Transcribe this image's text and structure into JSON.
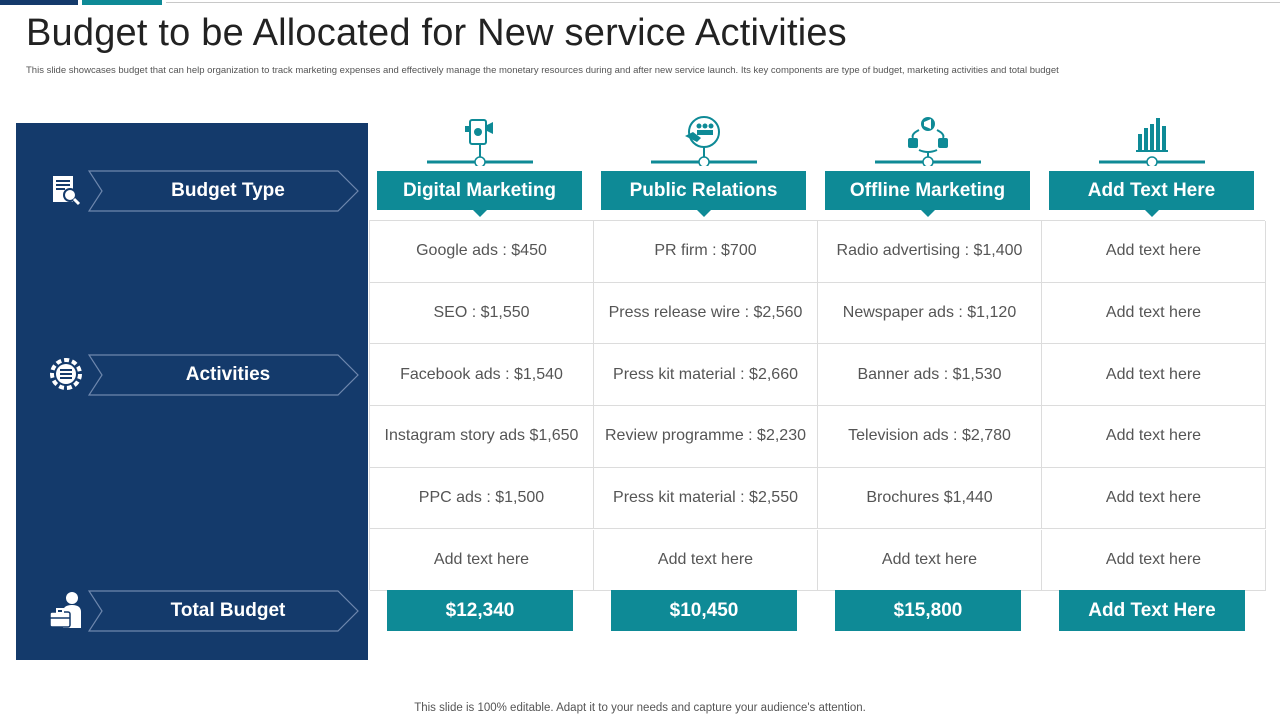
{
  "title": "Budget to be Allocated for New service Activities",
  "subtitle": "This slide showcases budget that can help organization to track marketing expenses and effectively manage the monetary resources during and after new service launch. Its key components are type of budget, marketing  activities and total budget",
  "left_panel": {
    "budget_type_label": "Budget Type",
    "activities_label": "Activities",
    "total_budget_label": "Total Budget"
  },
  "columns": [
    {
      "header": "Digital Marketing",
      "icon": "mobile-marketing-icon",
      "total": "$12,340",
      "rows": [
        "Google ads : $450",
        "SEO : $1,550",
        "Facebook ads : $1,540",
        "Instagram  story ads $1,650",
        "PPC ads : $1,500",
        "Add text here"
      ]
    },
    {
      "header": "Public Relations",
      "icon": "handshake-people-icon",
      "total": "$10,450",
      "rows": [
        "PR firm : $700",
        "Press release wire : $2,560",
        "Press kit material : $2,660",
        "Review programme : $2,230",
        "Press kit material : $2,550",
        "Add text here"
      ]
    },
    {
      "header": "Offline Marketing",
      "icon": "megaphone-network-icon",
      "total": "$15,800",
      "rows": [
        "Radio advertising : $1,400",
        "Newspaper ads : $1,120",
        "Banner ads : $1,530",
        "Television ads : $2,780",
        "Brochures $1,440",
        "Add text here"
      ]
    },
    {
      "header": "Add Text Here",
      "icon": "bar-chart-icon",
      "total": "Add Text Here",
      "rows": [
        "Add text here",
        "Add text here",
        "Add text here",
        "Add text here",
        "Add text here",
        "Add text here"
      ]
    }
  ],
  "footer": "This slide is 100% editable. Adapt it to your needs and capture your audience's attention.",
  "colors": {
    "navy": "#143a6b",
    "teal": "#0e8a96"
  }
}
